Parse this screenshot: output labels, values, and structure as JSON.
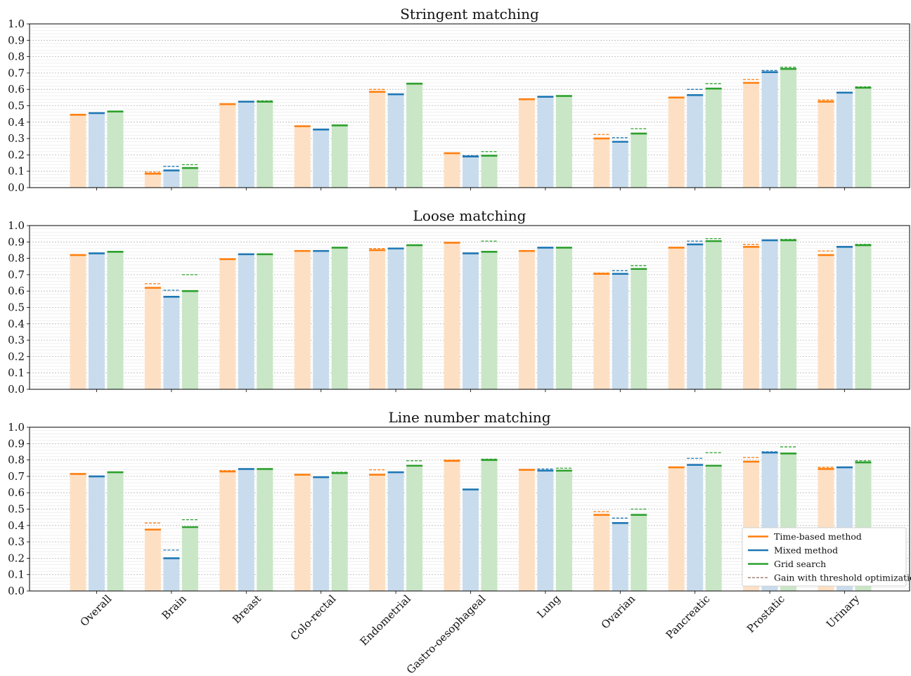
{
  "chart_data": [
    {
      "type": "bar",
      "title": "Stringent matching",
      "ylim": [
        0,
        1
      ],
      "yticks": [
        "0.0",
        "0.1",
        "0.2",
        "0.3",
        "0.4",
        "0.5",
        "0.6",
        "0.7",
        "0.8",
        "0.9",
        "1.0"
      ],
      "categories": [
        "Overall",
        "Brain",
        "Breast",
        "Colo-rectal",
        "Endometrial",
        "Gastro-oesophageal",
        "Lung",
        "Ovarian",
        "Pancreatic",
        "Prostatic",
        "Urinary"
      ],
      "series": [
        {
          "name": "Time-based method",
          "values": [
            0.445,
            0.085,
            0.51,
            0.375,
            0.585,
            0.21,
            0.54,
            0.3,
            0.55,
            0.64,
            0.525
          ],
          "optimized": [
            0.445,
            0.095,
            0.51,
            0.375,
            0.6,
            0.21,
            0.54,
            0.325,
            0.55,
            0.66,
            0.535
          ]
        },
        {
          "name": "Mixed method",
          "values": [
            0.455,
            0.105,
            0.525,
            0.355,
            0.57,
            0.19,
            0.555,
            0.28,
            0.565,
            0.705,
            0.58
          ],
          "optimized": [
            0.455,
            0.13,
            0.525,
            0.355,
            0.57,
            0.195,
            0.555,
            0.305,
            0.6,
            0.715,
            0.58
          ]
        },
        {
          "name": "Grid search",
          "values": [
            0.465,
            0.12,
            0.525,
            0.38,
            0.635,
            0.195,
            0.56,
            0.33,
            0.605,
            0.725,
            0.61
          ],
          "optimized": [
            0.465,
            0.14,
            0.53,
            0.38,
            0.635,
            0.22,
            0.56,
            0.36,
            0.635,
            0.735,
            0.615
          ]
        }
      ],
      "grid": true
    },
    {
      "type": "bar",
      "title": "Loose matching",
      "ylim": [
        0,
        1
      ],
      "yticks": [
        "0.0",
        "0.1",
        "0.2",
        "0.3",
        "0.4",
        "0.5",
        "0.6",
        "0.7",
        "0.8",
        "0.9",
        "1.0"
      ],
      "categories": [
        "Overall",
        "Brain",
        "Breast",
        "Colo-rectal",
        "Endometrial",
        "Gastro-oesophageal",
        "Lung",
        "Ovarian",
        "Pancreatic",
        "Prostatic",
        "Urinary"
      ],
      "series": [
        {
          "name": "Time-based method",
          "values": [
            0.82,
            0.62,
            0.795,
            0.845,
            0.85,
            0.895,
            0.845,
            0.705,
            0.865,
            0.87,
            0.82
          ],
          "optimized": [
            0.82,
            0.645,
            0.795,
            0.845,
            0.86,
            0.895,
            0.845,
            0.71,
            0.865,
            0.885,
            0.845
          ]
        },
        {
          "name": "Mixed method",
          "values": [
            0.83,
            0.565,
            0.825,
            0.845,
            0.86,
            0.83,
            0.865,
            0.705,
            0.885,
            0.91,
            0.87
          ],
          "optimized": [
            0.83,
            0.605,
            0.825,
            0.845,
            0.86,
            0.83,
            0.865,
            0.725,
            0.905,
            0.91,
            0.87
          ]
        },
        {
          "name": "Grid search",
          "values": [
            0.84,
            0.6,
            0.825,
            0.865,
            0.88,
            0.84,
            0.865,
            0.735,
            0.905,
            0.91,
            0.88
          ],
          "optimized": [
            0.84,
            0.7,
            0.825,
            0.865,
            0.88,
            0.905,
            0.865,
            0.755,
            0.92,
            0.915,
            0.885
          ]
        }
      ],
      "grid": true
    },
    {
      "type": "bar",
      "title": "Line number matching",
      "ylim": [
        0,
        1
      ],
      "yticks": [
        "0.0",
        "0.1",
        "0.2",
        "0.3",
        "0.4",
        "0.5",
        "0.6",
        "0.7",
        "0.8",
        "0.9",
        "1.0"
      ],
      "categories": [
        "Overall",
        "Brain",
        "Breast",
        "Colo-rectal",
        "Endometrial",
        "Gastro-oesophageal",
        "Lung",
        "Ovarian",
        "Pancreatic",
        "Prostatic",
        "Urinary"
      ],
      "series": [
        {
          "name": "Time-based method",
          "values": [
            0.715,
            0.375,
            0.73,
            0.71,
            0.71,
            0.795,
            0.74,
            0.465,
            0.755,
            0.79,
            0.745
          ],
          "optimized": [
            0.715,
            0.415,
            0.735,
            0.71,
            0.74,
            0.8,
            0.74,
            0.485,
            0.755,
            0.815,
            0.755
          ]
        },
        {
          "name": "Mixed method",
          "values": [
            0.7,
            0.2,
            0.745,
            0.695,
            0.725,
            0.62,
            0.735,
            0.415,
            0.77,
            0.845,
            0.755
          ],
          "optimized": [
            0.7,
            0.25,
            0.745,
            0.695,
            0.725,
            0.62,
            0.745,
            0.445,
            0.81,
            0.85,
            0.755
          ]
        },
        {
          "name": "Grid search",
          "values": [
            0.725,
            0.39,
            0.745,
            0.72,
            0.765,
            0.8,
            0.735,
            0.465,
            0.765,
            0.84,
            0.785
          ],
          "optimized": [
            0.725,
            0.435,
            0.745,
            0.725,
            0.795,
            0.805,
            0.75,
            0.5,
            0.845,
            0.88,
            0.795
          ]
        }
      ],
      "grid": true
    }
  ],
  "legend": {
    "placement": "lower-right of bottom panel",
    "entries": [
      {
        "label": "Time-based method",
        "style": "solid",
        "color": "#ff7f0e"
      },
      {
        "label": "Mixed method",
        "style": "solid",
        "color": "#1f77b4"
      },
      {
        "label": "Grid search",
        "style": "solid",
        "color": "#2ca02c"
      },
      {
        "label": "Gain with threshold optimization",
        "style": "dashed",
        "color": "#8c6a5a"
      }
    ]
  },
  "colors": {
    "time_based": "#ff7f0e",
    "mixed": "#1f77b4",
    "grid_search": "#2ca02c",
    "time_based_fill": "#fde0c4",
    "mixed_fill": "#c9dced",
    "grid_search_fill": "#c9e6c6",
    "gain_dashed": "#8c6a5a"
  }
}
